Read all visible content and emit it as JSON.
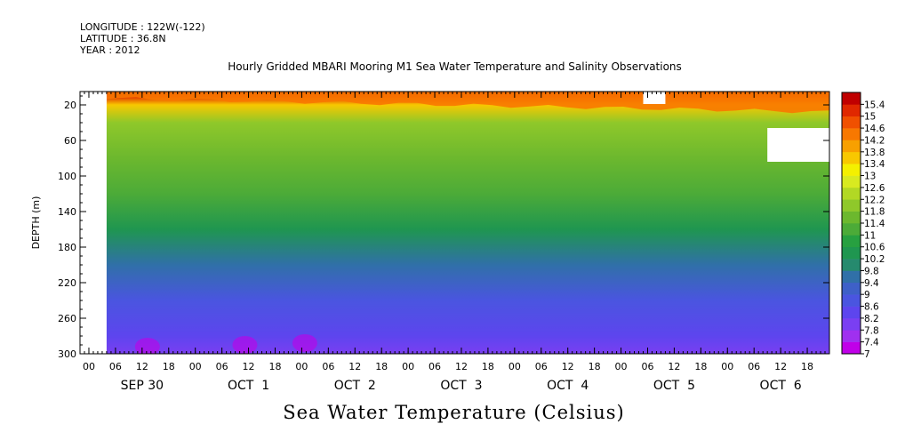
{
  "header": {
    "longitude": "LONGITUDE : 122W(-122)",
    "latitude": "LATITUDE : 36.8N",
    "year": "YEAR : 2012"
  },
  "chart_data": {
    "type": "heatmap",
    "title": "Hourly Gridded MBARI Mooring M1 Sea Water Temperature and Salinity Observations",
    "xlabel": "",
    "ylabel": "DEPTH (m)",
    "colorbar_title": "Sea Water Temperature (Celsius)",
    "x_range": [
      "2012-09-29T22:00",
      "2012-10-06T23:00"
    ],
    "x_hour_ticks": [
      "00",
      "06",
      "12",
      "18",
      "00",
      "06",
      "12",
      "18",
      "00",
      "06",
      "12",
      "18",
      "00",
      "06",
      "12",
      "18",
      "00",
      "06",
      "12",
      "18",
      "00",
      "06",
      "12",
      "18",
      "00",
      "06",
      "12",
      "18"
    ],
    "x_day_labels": [
      "SEP 30",
      "OCT  1",
      "OCT  2",
      "OCT  3",
      "OCT  4",
      "OCT  5",
      "OCT  6"
    ],
    "y_range": [
      5,
      300
    ],
    "y_inverted": true,
    "y_ticks": [
      20,
      60,
      100,
      140,
      180,
      220,
      260,
      300
    ],
    "colorbar_ticks": [
      "7",
      "7.4",
      "7.8",
      "8.2",
      "8.6",
      "9",
      "9.4",
      "9.8",
      "10.2",
      "10.6",
      "11",
      "11.4",
      "11.8",
      "12.2",
      "12.6",
      "13",
      "13.4",
      "13.8",
      "14.2",
      "14.6",
      "15",
      "15.4"
    ],
    "colorbar_colors": [
      "#c000e8",
      "#a030ef",
      "#7a3ff2",
      "#5d45ee",
      "#4a55e0",
      "#3e60c8",
      "#3070a8",
      "#268a6e",
      "#1f9650",
      "#27a040",
      "#4cab38",
      "#6cb82e",
      "#8fc82a",
      "#b2d824",
      "#d8ea20",
      "#f4f000",
      "#f8c800",
      "#f8a000",
      "#f87800",
      "#f05000",
      "#e02800",
      "#c00000"
    ],
    "depth_profile_mean": [
      {
        "depth": 10,
        "temp": 15.0
      },
      {
        "depth": 20,
        "temp": 13.4
      },
      {
        "depth": 40,
        "temp": 11.9
      },
      {
        "depth": 80,
        "temp": 11.4
      },
      {
        "depth": 120,
        "temp": 11.2
      },
      {
        "depth": 160,
        "temp": 10.3
      },
      {
        "depth": 200,
        "temp": 9.3
      },
      {
        "depth": 240,
        "temp": 8.7
      },
      {
        "depth": 280,
        "temp": 8.2
      },
      {
        "depth": 300,
        "temp": 8.0
      }
    ],
    "missing_regions": [
      {
        "x_from": "2012-09-29T22:00",
        "x_to": "2012-09-30T04:00",
        "depth_from": 5,
        "depth_to": 300
      },
      {
        "x_from": "2012-10-05T05:00",
        "x_to": "2012-10-05T10:00",
        "depth_from": 5,
        "depth_to": 19
      },
      {
        "x_from": "2012-10-06T09:00",
        "x_to": "2012-10-06T23:00",
        "depth_from": 46,
        "depth_to": 84
      }
    ]
  }
}
